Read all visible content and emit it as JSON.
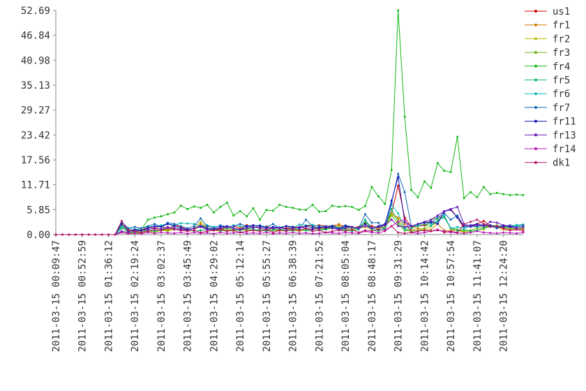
{
  "chart_data": {
    "type": "line",
    "categories": [
      "2011-03-15 00:09:47",
      null,
      null,
      null,
      "2011-03-15 00:52:59",
      null,
      null,
      null,
      "2011-03-15 01:36:12",
      null,
      null,
      null,
      "2011-03-15 02:19:24",
      null,
      null,
      null,
      "2011-03-15 03:02:37",
      null,
      null,
      null,
      "2011-03-15 03:45:49",
      null,
      null,
      null,
      "2011-03-15 04:29:02",
      null,
      null,
      null,
      "2011-03-15 05:12:14",
      null,
      null,
      null,
      "2011-03-15 05:55:27",
      null,
      null,
      null,
      "2011-03-15 06:38:39",
      null,
      null,
      null,
      "2011-03-15 07:21:52",
      null,
      null,
      null,
      "2011-03-15 08:05:04",
      null,
      null,
      null,
      "2011-03-15 08:48:17",
      null,
      null,
      null,
      "2011-03-15 09:31:29",
      null,
      null,
      null,
      "2011-03-15 10:14:42",
      null,
      null,
      null,
      "2011-03-15 10:57:54",
      null,
      null,
      null,
      "2011-03-15 11:41:07",
      null,
      null,
      null,
      "2011-03-15 12:24:20",
      null,
      null,
      null
    ],
    "ylim": [
      0,
      52.69
    ],
    "yticks": [
      {
        "value": 0,
        "label": "0.00"
      },
      5.85,
      11.71,
      17.56,
      23.42,
      29.27,
      35.13,
      40.98,
      46.84,
      52.69
    ],
    "legend": "right",
    "series": [
      {
        "name": "us1",
        "color": "#cc0000",
        "values": [
          0,
          0,
          0,
          0,
          0,
          0,
          0,
          0,
          0,
          0,
          2.5,
          1.2,
          0.8,
          1,
          1.8,
          1.5,
          2,
          1.2,
          2.2,
          1.8,
          1.2,
          1.5,
          1.8,
          2,
          1.5,
          1.2,
          1.8,
          2,
          1.5,
          2.2,
          1.8,
          1.6,
          1.9,
          1.4,
          1.6,
          1.5,
          1.8,
          1.7,
          2,
          2.1,
          2.2,
          2,
          2.1,
          2.3,
          1.9,
          1.6,
          1.8,
          2.8,
          2,
          1.5,
          2.5,
          5,
          11.5,
          4,
          1.8,
          2,
          2.2,
          3,
          2.8,
          5.5,
          6,
          4,
          1.5,
          2,
          2.5,
          3.2,
          2,
          1.5,
          1.8,
          1.5,
          1.2,
          1.3
        ]
      },
      {
        "name": "fr1",
        "color": "#cc7a00",
        "values": [
          0,
          0,
          0,
          0,
          0,
          0,
          0,
          0,
          0,
          0,
          0.8,
          0.5,
          0.3,
          0.5,
          1,
          0.8,
          1.2,
          1,
          1.5,
          1.2,
          0.8,
          1,
          2.5,
          1.5,
          1,
          0.8,
          1.2,
          1,
          1.5,
          1.2,
          1,
          0.8,
          1.2,
          1,
          0.9,
          1.1,
          1.3,
          1,
          1.2,
          1.4,
          1.5,
          1.3,
          1.6,
          2.5,
          1.2,
          1,
          1.5,
          2,
          1.5,
          1.2,
          2,
          5,
          4,
          2.5,
          1,
          1.5,
          1,
          1.2,
          2.5,
          1,
          0.8,
          1.2,
          0.5,
          0.8,
          1,
          1.5,
          2,
          1.8,
          1.2,
          1,
          1.2,
          1.5
        ]
      },
      {
        "name": "fr2",
        "color": "#b8b800",
        "values": [
          0,
          0,
          0,
          0,
          0,
          0,
          0,
          0,
          0,
          0,
          0.5,
          0.3,
          0.5,
          0.4,
          0.8,
          0.5,
          1,
          0.8,
          1.2,
          1,
          1.2,
          1.5,
          3,
          1.5,
          1,
          1.2,
          1,
          0.8,
          1.2,
          1,
          1,
          0.8,
          1,
          1.2,
          0.9,
          1,
          1,
          0.8,
          1.1,
          1.3,
          1.2,
          1.4,
          1.5,
          2,
          1.2,
          1,
          1.5,
          1.8,
          1.2,
          1.5,
          1.8,
          4.8,
          3.5,
          1.5,
          0.8,
          1,
          1.2,
          2,
          3,
          4.5,
          1.2,
          1,
          0.5,
          0.8,
          1,
          1.2,
          2.2,
          2,
          1.5,
          1.2,
          1.5,
          1.8
        ]
      },
      {
        "name": "fr3",
        "color": "#66b814",
        "values": [
          0,
          0,
          0,
          0,
          0,
          0,
          0,
          0,
          0,
          0,
          2,
          0.5,
          0.5,
          0.5,
          0.8,
          0.8,
          1,
          1.2,
          1.5,
          1.2,
          1,
          1.5,
          2,
          1.5,
          1.2,
          1,
          1.5,
          1.2,
          1,
          1.2,
          1,
          1.2,
          0.8,
          1,
          1.2,
          1,
          1.5,
          1.2,
          1,
          1.4,
          1.2,
          1.5,
          1.8,
          1.6,
          1.2,
          1.5,
          1.3,
          3,
          1.5,
          2,
          1.5,
          4.5,
          2.5,
          1,
          0.8,
          1,
          1.5,
          3.5,
          4,
          4.2,
          1.5,
          1.2,
          0.8,
          1,
          1.5,
          1.8,
          2,
          2.2,
          1.8,
          1.5,
          1.2,
          1.5
        ]
      },
      {
        "name": "fr4",
        "color": "#14b814",
        "values": [
          0,
          0,
          0,
          0,
          0,
          0,
          0,
          0,
          0,
          0,
          2.5,
          1,
          1,
          1.2,
          3.5,
          4,
          4.3,
          4.8,
          5.2,
          6.8,
          6,
          6.6,
          6.3,
          7,
          5.2,
          6.5,
          7.5,
          4.5,
          5.5,
          4.3,
          6.2,
          3.5,
          5.8,
          5.6,
          7,
          6.5,
          6.3,
          5.9,
          5.8,
          7,
          5.4,
          5.5,
          6.8,
          6.5,
          6.7,
          6.5,
          5.8,
          6.7,
          11.2,
          9,
          7.2,
          15.2,
          52.69,
          27.7,
          10.5,
          8.8,
          12.5,
          11,
          16.8,
          15,
          14.7,
          23,
          8.6,
          10,
          8.8,
          11.2,
          9.5,
          9.8,
          9.5,
          9.3,
          9.4,
          9.3
        ]
      },
      {
        "name": "fr5",
        "color": "#14b866",
        "values": [
          0,
          0,
          0,
          0,
          0,
          0,
          0,
          0,
          0,
          0,
          1.5,
          0.8,
          0.5,
          0.8,
          1,
          0.8,
          1.2,
          1.5,
          1.2,
          1,
          1.2,
          0.8,
          1,
          1.2,
          1.5,
          1,
          0.8,
          1.2,
          1,
          1.5,
          1.2,
          1,
          0.8,
          1.1,
          1.3,
          1,
          0.9,
          1.2,
          1,
          0.8,
          1,
          1.2,
          1.5,
          1.2,
          1,
          0.8,
          1.2,
          3.5,
          1,
          0.8,
          1.5,
          6,
          3,
          1,
          1.5,
          2,
          2.5,
          2,
          3.5,
          4,
          1.5,
          1,
          1.2,
          0.8,
          1,
          1.5,
          1.8,
          2,
          1.5,
          1.8,
          2,
          2.2
        ]
      },
      {
        "name": "fr6",
        "color": "#14b8b8",
        "values": [
          0,
          0,
          0,
          0,
          0,
          0,
          0,
          0,
          0,
          0,
          1.8,
          1.5,
          1.2,
          1.5,
          1.8,
          2,
          2.2,
          2.5,
          2.3,
          2.7,
          2.6,
          2.5,
          2,
          2.2,
          1.8,
          2,
          1.5,
          2.2,
          2,
          1.8,
          2.2,
          1.9,
          1.5,
          1.8,
          1.7,
          2,
          1.6,
          2.4,
          2.2,
          2.3,
          2,
          1.8,
          2.1,
          1.5,
          1.6,
          1.8,
          1.2,
          3.5,
          1.5,
          1.2,
          2.5,
          7,
          5,
          1.5,
          2,
          2.2,
          3,
          2.5,
          3,
          4.5,
          1.5,
          1.8,
          1.5,
          2,
          1.8,
          2.2,
          2,
          1.8,
          2.2,
          2,
          2.3,
          2.4
        ]
      },
      {
        "name": "fr7",
        "color": "#1466b8",
        "values": [
          0,
          0,
          0,
          0,
          0,
          0,
          0,
          0,
          0,
          0,
          3,
          1.5,
          1.8,
          1.5,
          2,
          2.5,
          1.8,
          2.8,
          2.5,
          2,
          1.5,
          2,
          3.8,
          2,
          1.5,
          2.2,
          1.8,
          2,
          2.5,
          2,
          1.5,
          2.2,
          1.8,
          2.5,
          1.5,
          2,
          1.8,
          1.5,
          3.5,
          2,
          1.5,
          2,
          1.8,
          1.5,
          2.2,
          1.8,
          1.5,
          4.8,
          2.8,
          2.8,
          1,
          7.5,
          14.3,
          10,
          2,
          2.5,
          3,
          2.8,
          4,
          5,
          3.5,
          4.5,
          2,
          1.8,
          2,
          2.5,
          2,
          1.5,
          2,
          2.2,
          1.8,
          2.2
        ]
      },
      {
        "name": "fr11",
        "color": "#1414b8",
        "values": [
          0,
          0,
          0,
          0,
          0,
          0,
          0,
          0,
          0,
          0,
          2.5,
          0.8,
          1.2,
          1,
          1.5,
          2,
          1.8,
          2.5,
          2,
          1.5,
          1.2,
          1.5,
          2,
          1.5,
          1.2,
          1.8,
          2,
          1.5,
          1.2,
          2,
          2.2,
          2,
          1.5,
          1.8,
          1.6,
          2,
          1.8,
          1.5,
          2,
          1.6,
          1.8,
          1.5,
          2,
          1.2,
          2,
          1.8,
          1.5,
          2.5,
          1.5,
          2,
          2.5,
          8,
          13.5,
          3,
          2,
          2.5,
          2.8,
          3,
          2.5,
          5.5,
          5.8,
          4,
          2,
          2.2,
          2.5,
          2,
          2.2,
          1.8,
          2,
          1.8,
          1.5,
          1.8
        ]
      },
      {
        "name": "fr13",
        "color": "#6614b8",
        "values": [
          0,
          0,
          0,
          0,
          0,
          0,
          0,
          0,
          0,
          0,
          0.8,
          0.5,
          0.8,
          1,
          1.2,
          1.5,
          1.3,
          1.8,
          1.5,
          1.2,
          1,
          1.5,
          1.8,
          1.2,
          1,
          1.5,
          1.8,
          1.5,
          1.2,
          1.5,
          1.8,
          1.5,
          1.2,
          1.5,
          1.6,
          1.3,
          1.5,
          1.8,
          1.5,
          1.2,
          1.5,
          1.8,
          1.5,
          1.2,
          1.5,
          1.8,
          1.5,
          2,
          1.5,
          1.8,
          2.2,
          3.5,
          2,
          1.8,
          2,
          2.5,
          3,
          3.5,
          4.5,
          5.5,
          6,
          6.5,
          2.5,
          2,
          2.2,
          2,
          3,
          2.8,
          2.2,
          2,
          1.5,
          1.8
        ]
      },
      {
        "name": "fr14",
        "color": "#b814b8",
        "values": [
          0,
          0,
          0,
          0,
          0,
          0,
          0,
          0,
          0,
          0,
          0.5,
          0.2,
          0.3,
          0.2,
          0.5,
          0.3,
          0.5,
          0.4,
          0.3,
          0.5,
          0.2,
          0.5,
          0.3,
          0.4,
          0.2,
          0.5,
          0.3,
          0.4,
          0.5,
          0.3,
          0.4,
          0.3,
          0.5,
          0.2,
          0.4,
          0.3,
          0.5,
          0.3,
          0.4,
          0.2,
          0.3,
          0.5,
          0.4,
          0.3,
          0.5,
          0.4,
          0.3,
          0.8,
          0.5,
          0.4,
          0.8,
          2,
          3,
          3.5,
          0.5,
          0.3,
          0.5,
          0.8,
          1,
          0.8,
          0.5,
          0.4,
          0.3,
          0.5,
          0.8,
          0.5,
          0.4,
          0.3,
          0.5,
          0.4,
          0.3,
          0.5
        ]
      },
      {
        "name": "dk1",
        "color": "#b81466",
        "values": [
          0,
          0,
          0,
          0,
          0,
          0,
          0,
          0,
          0,
          0,
          3.2,
          1,
          0.8,
          0.5,
          0.8,
          1.2,
          1,
          1.5,
          1.2,
          1,
          0.8,
          1,
          0.5,
          0.8,
          1,
          1.2,
          0.8,
          1,
          0.5,
          0.8,
          1,
          0.8,
          1.2,
          0.5,
          1,
          0.8,
          1.2,
          1,
          1.5,
          0.8,
          1,
          0.5,
          0.8,
          1,
          0.8,
          1.2,
          0.5,
          1,
          0.8,
          1.2,
          1,
          2,
          0.5,
          0.3,
          0.5,
          0.8,
          1,
          0.8,
          1.2,
          0.5,
          0.8,
          0.5,
          2.5,
          3,
          3.5,
          2.5,
          1.8,
          2,
          1.5,
          1,
          1.2,
          0.8
        ]
      }
    ]
  }
}
